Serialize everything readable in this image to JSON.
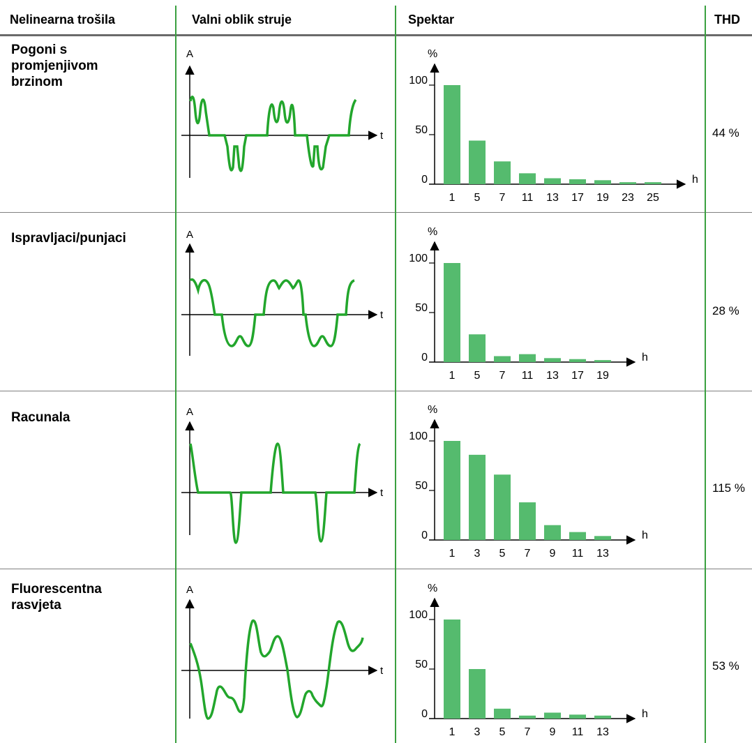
{
  "header": {
    "col_load": "Nelinearna trošila",
    "col_wave": "Valni oblik struje",
    "col_spectrum": "Spektar",
    "col_thd": "THD"
  },
  "colors": {
    "accent": "#22a62c",
    "bar": "#55bb6e",
    "grid_line": "#3aa040"
  },
  "axis_labels": {
    "current": "A",
    "time": "t",
    "percent": "%",
    "harmonic": "h"
  },
  "rows": [
    {
      "label": "Pogoni s\npromjenjivom\nbrzinom",
      "thd": "44 %",
      "waveform": "variable-speed-drive-current"
    },
    {
      "label": "Ispravljaci/punjaci",
      "thd": "28 %",
      "waveform": "rectifier-charger-current"
    },
    {
      "label": "Racunala",
      "thd": "115 %",
      "waveform": "computer-current"
    },
    {
      "label": "Fluorescentna\nrasvjeta",
      "thd": "53 %",
      "waveform": "fluorescent-lighting-current"
    }
  ],
  "chart_data": [
    {
      "type": "bar",
      "categories": [
        "1",
        "5",
        "7",
        "11",
        "13",
        "17",
        "19",
        "23",
        "25"
      ],
      "values": [
        100,
        44,
        23,
        11,
        6,
        5,
        4,
        2,
        2
      ],
      "xlabel": "h",
      "ylabel": "%",
      "yticks": [
        "0",
        "50",
        "100"
      ],
      "ylim": [
        0,
        100
      ]
    },
    {
      "type": "bar",
      "categories": [
        "1",
        "5",
        "7",
        "11",
        "13",
        "17",
        "19"
      ],
      "values": [
        100,
        28,
        6,
        8,
        4,
        3,
        2
      ],
      "xlabel": "h",
      "ylabel": "%",
      "yticks": [
        "0",
        "50",
        "100"
      ],
      "ylim": [
        0,
        100
      ]
    },
    {
      "type": "bar",
      "categories": [
        "1",
        "3",
        "5",
        "7",
        "9",
        "11",
        "13"
      ],
      "values": [
        100,
        86,
        66,
        38,
        15,
        8,
        4
      ],
      "xlabel": "h",
      "ylabel": "%",
      "yticks": [
        "0",
        "50",
        "100"
      ],
      "ylim": [
        0,
        100
      ]
    },
    {
      "type": "bar",
      "categories": [
        "1",
        "3",
        "5",
        "7",
        "9",
        "11",
        "13"
      ],
      "values": [
        100,
        50,
        10,
        3,
        6,
        4,
        3
      ],
      "xlabel": "h",
      "ylabel": "%",
      "yticks": [
        "0",
        "50",
        "100"
      ],
      "ylim": [
        0,
        100
      ]
    }
  ]
}
